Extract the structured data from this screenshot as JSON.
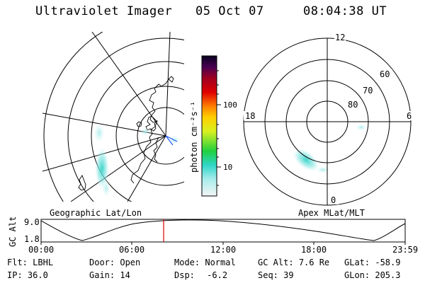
{
  "header": {
    "instrument": "Ultraviolet Imager",
    "date": "05 Oct 07",
    "time": "08:04:38 UT"
  },
  "maps": {
    "left_label": "Geographic Lat/Lon",
    "right_label": "Apex MLat/MLT",
    "polar_clock": [
      "12",
      "18",
      "6",
      "0"
    ],
    "polar_lat": [
      "60",
      "70",
      "80"
    ]
  },
  "colorbar": {
    "unit_label": "photon cm⁻²s⁻¹",
    "ticks": [
      "100",
      "10"
    ]
  },
  "altitude_plot": {
    "ylabel": "GC Alt",
    "yticks": [
      "9.0",
      "1.8"
    ],
    "xticks": [
      "00:00",
      "06:00",
      "12:00",
      "18:00",
      "23:59"
    ],
    "current_time_marker": "08:04"
  },
  "status": {
    "row1": [
      {
        "key": "Flt:",
        "value": "LBHL"
      },
      {
        "key": "Door:",
        "value": "Open"
      },
      {
        "key": "Mode:",
        "value": "Normal"
      },
      {
        "key": "GC Alt:",
        "value": "7.6 Re"
      },
      {
        "key": "GLat:",
        "value": "-58.9"
      }
    ],
    "row2": [
      {
        "key": "IP:",
        "value": "36.0"
      },
      {
        "key": "Gain:",
        "value": "14"
      },
      {
        "key": "Dsp:",
        "value": "-6.2"
      },
      {
        "key": "Seq:",
        "value": "39"
      },
      {
        "key": "GLon:",
        "value": "205.3"
      }
    ]
  }
}
